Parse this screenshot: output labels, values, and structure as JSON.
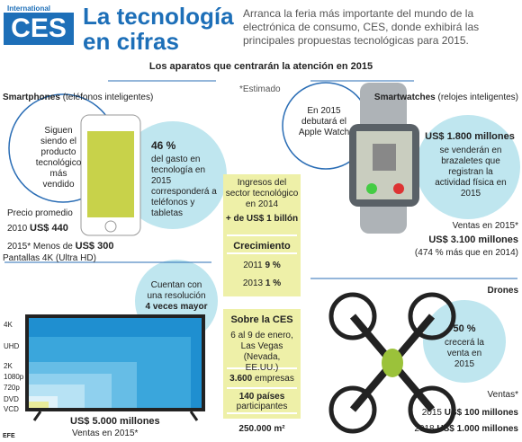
{
  "header": {
    "logo_small": "International",
    "logo": "CES",
    "title_line1": "La tecnología",
    "title_line2": "en cifras",
    "intro": "Arranca la feria más importante del mundo de la electrónica de consumo, CES, donde exhibirá las principales propuestas tecnológicas para 2015."
  },
  "subtitle": "Los aparatos que centrarán la atención en 2015",
  "note": "*Estimado",
  "smartphones": {
    "heading": "Smartphones",
    "heading_note": "(teléfonos inteligentes)",
    "bubble": "Siguen siendo el producto tecnológico más vendido",
    "stat_value": "46 %",
    "stat_text": "del gasto en tecnología en 2015 corresponderá a teléfonos y tabletas",
    "price_label": "Precio promedio",
    "price_2010_year": "2010",
    "price_2010_value": "US$ 440",
    "price_2015_label": "2015* Menos de",
    "price_2015_value": "US$ 300"
  },
  "sector": {
    "line1": "Ingresos del sector tecnológico en 2014",
    "line2": "+ de US$ 1 billón",
    "growth_title": "Crecimiento",
    "growth": [
      {
        "year": "2011",
        "value": "9 %"
      },
      {
        "year": "2013",
        "value": "1 %"
      }
    ]
  },
  "smartwatches": {
    "heading": "Smartwatches",
    "heading_note": "(relojes inteligentes)",
    "bubble": "En 2015 debutará el Apple Watch",
    "stat_value": "US$ 1.800 millones",
    "stat_text": "se venderán en brazaletes que registran la actividad física en 2015",
    "sales_label": "Ventas en 2015*",
    "sales_value": "US$ 3.100 millones",
    "sales_note": "(474 % más que en 2014)"
  },
  "tv": {
    "heading": "Pantallas 4K (Ultra HD)",
    "bubble": "Cuentan con una resolución",
    "bubble_bold": "4 veces mayor",
    "resolutions": [
      "4K",
      "UHD",
      "2K",
      "1080p",
      "720p",
      "DVD",
      "VCD"
    ],
    "sales_value": "US$ 5.000 millones",
    "sales_label": "Ventas en 2015*"
  },
  "ces": {
    "title": "Sobre la CES",
    "dates": "6 al 9 de enero, Las Vegas (Nevada, EE.UU.)",
    "companies_value": "3.600",
    "companies_label": "empresas",
    "countries_value": "140 países",
    "countries_label": "participantes",
    "area_value": "250.000 m²"
  },
  "drones": {
    "heading": "Drones",
    "stat_value": "50 %",
    "stat_text": "crecerá la venta en 2015",
    "sales_label": "Ventas*",
    "sales": [
      {
        "year": "2015",
        "value": "US$ 100 millones"
      },
      {
        "year": "2018",
        "value": "US$ 1.000 millones"
      }
    ]
  },
  "credit": "EFE"
}
